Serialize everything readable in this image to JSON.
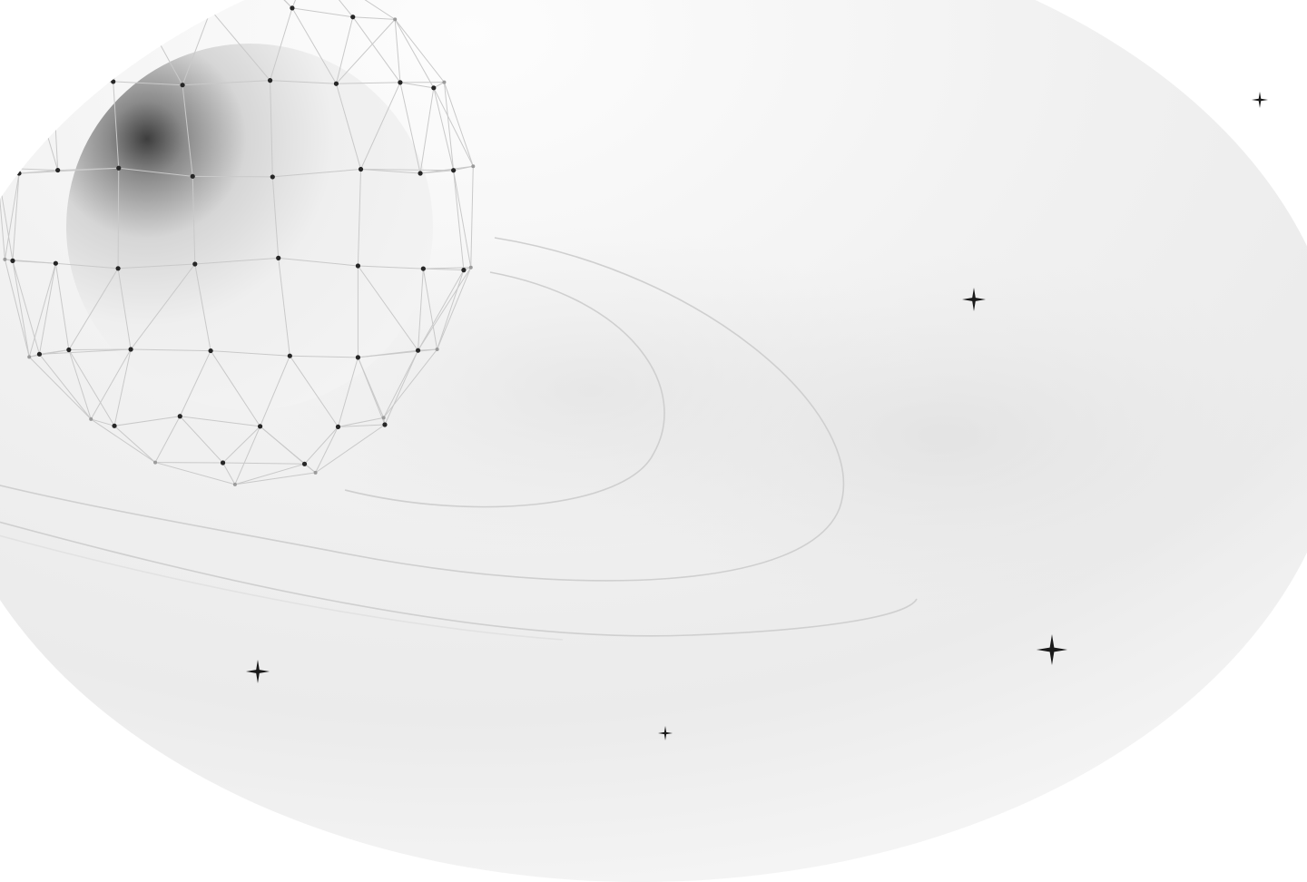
{
  "scene": {
    "subject": "planet-with-wireframe-mesh",
    "colors": {
      "page_background": "#ffffff",
      "disc_light": "#f8f8f8",
      "disc_mid": "#ededed",
      "disc_shadow": "#dcdcdc",
      "mesh_line": "#c9c9c9",
      "mesh_node": "#262626",
      "orbit_line": "#d0d0d0",
      "star": "#1a1a1a"
    },
    "stars": [
      {
        "name": "star-top-right",
        "size": "small"
      },
      {
        "name": "star-right-middle",
        "size": "medium"
      },
      {
        "name": "star-bottom-right",
        "size": "large"
      },
      {
        "name": "star-bottom-left",
        "size": "medium"
      },
      {
        "name": "star-bottom-center",
        "size": "small"
      }
    ]
  }
}
